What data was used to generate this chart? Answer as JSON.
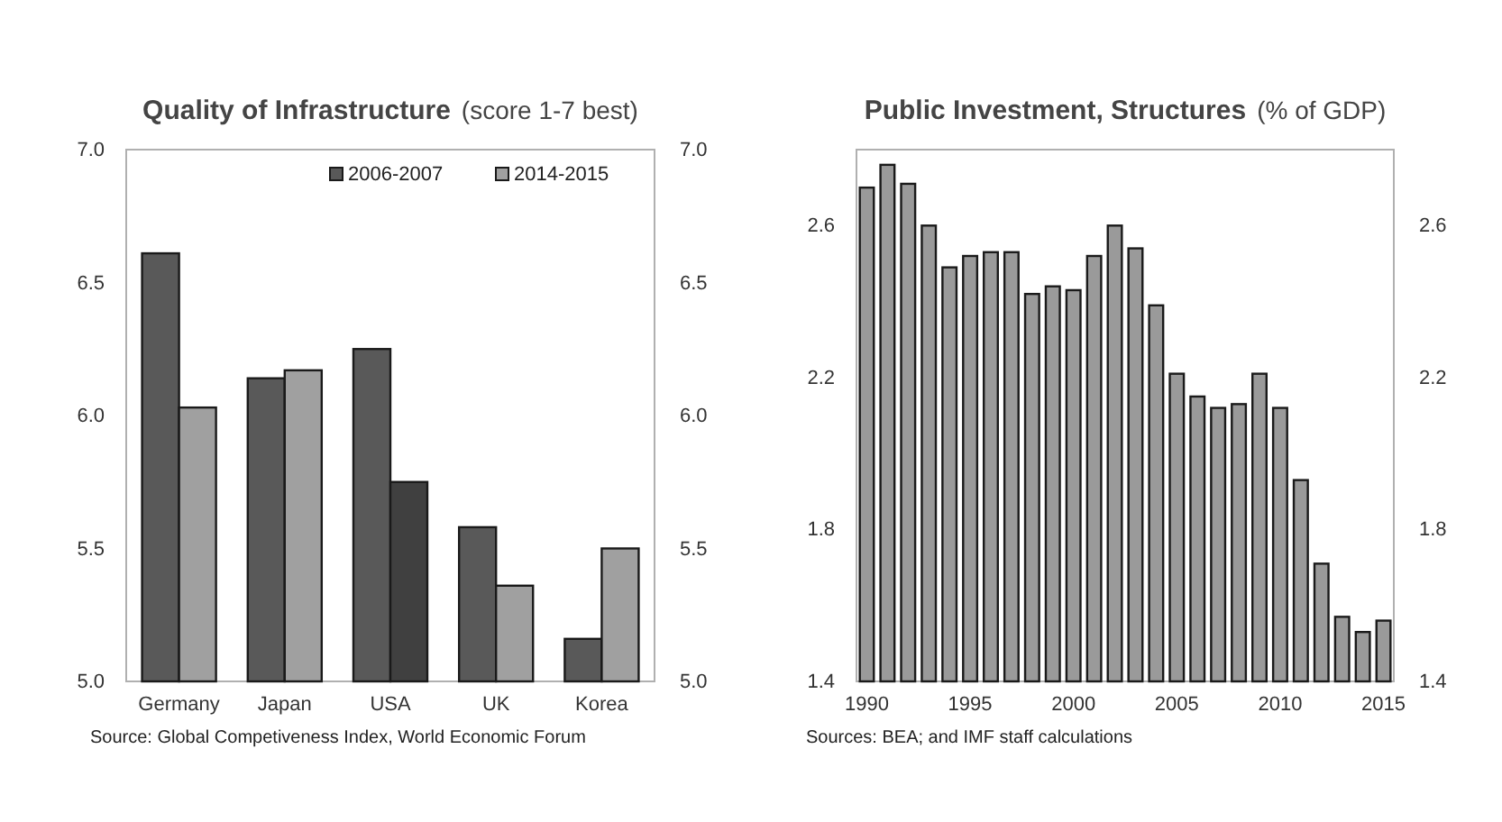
{
  "chart_data": [
    {
      "type": "bar",
      "title": "Quality of Infrastructure",
      "subtitle": "(score 1-7 best)",
      "categories": [
        "Germany",
        "Japan",
        "USA",
        "UK",
        "Korea"
      ],
      "series": [
        {
          "name": "2006-2007",
          "color": "#595959",
          "values": [
            6.61,
            6.14,
            6.25,
            5.58,
            5.16
          ]
        },
        {
          "name": "2014-2015",
          "color": "#a0a0a0",
          "colors": [
            "#a0a0a0",
            "#a0a0a0",
            "#404040",
            "#a0a0a0",
            "#a0a0a0"
          ],
          "values": [
            6.03,
            6.17,
            5.75,
            5.36,
            5.5
          ]
        }
      ],
      "ylim": [
        5.0,
        7.0
      ],
      "yticks": [
        {
          "value": 5,
          "label": "5.0"
        },
        5.5,
        {
          "value": 6,
          "label": "6.0"
        },
        6.5,
        {
          "value": 7,
          "label": "7.0"
        }
      ],
      "y2lim": [
        5.0,
        7.0
      ],
      "y2ticks": [
        {
          "value": 5,
          "label": "5.0"
        },
        5.5,
        {
          "value": 6,
          "label": "6.0"
        },
        6.5,
        {
          "value": 7,
          "label": "7.0"
        }
      ],
      "legend": "top right",
      "grid": false,
      "annotations": [
        "Source: Global Competiveness Index, World Economic Forum"
      ]
    },
    {
      "type": "bar",
      "title": "Public Investment,  Structures",
      "subtitle": "(% of GDP)",
      "x": [
        1990,
        1991,
        1992,
        1993,
        1994,
        1995,
        1996,
        1997,
        1998,
        1999,
        2000,
        2001,
        2002,
        2003,
        2004,
        2005,
        2006,
        2007,
        2008,
        2009,
        2010,
        2011,
        2012,
        2013,
        2014,
        2015
      ],
      "series": [
        {
          "color": "#9a9a9a",
          "values": [
            2.7,
            2.76,
            2.71,
            2.6,
            2.49,
            2.52,
            2.53,
            2.53,
            2.42,
            2.44,
            2.43,
            2.52,
            2.6,
            2.54,
            2.39,
            2.21,
            2.15,
            2.12,
            2.13,
            2.21,
            2.12,
            1.93,
            1.71,
            1.57,
            1.53,
            1.56
          ]
        }
      ],
      "xlim": [
        1989.5,
        2015.5
      ],
      "xticks": [
        1990,
        1995,
        2000,
        2005,
        2010,
        2015
      ],
      "ylim": [
        1.4,
        2.8
      ],
      "yticks": [
        1.4,
        1.8,
        2.2,
        2.6
      ],
      "y2lim": [
        1.4,
        2.8
      ],
      "y2ticks": [
        1.4,
        1.8,
        2.2,
        2.6
      ],
      "grid": false,
      "annotations": [
        "Sources: BEA; and IMF staff calculations"
      ]
    }
  ]
}
